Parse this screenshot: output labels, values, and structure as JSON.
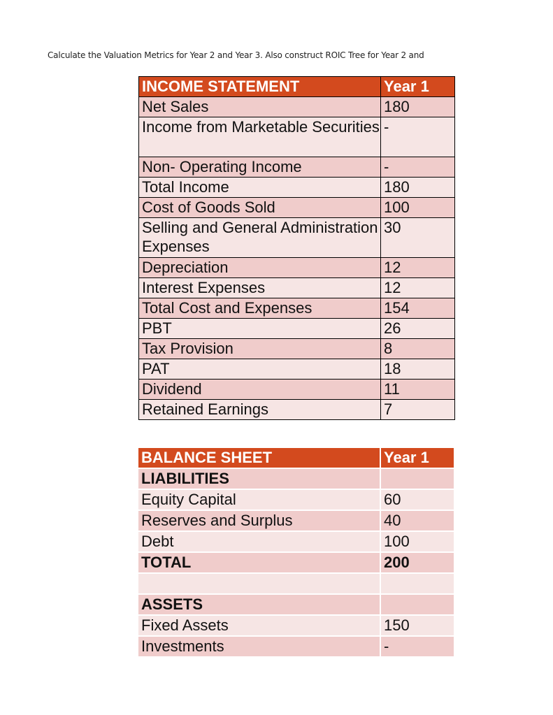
{
  "instruction": "Calculate the Valuation Metrics for Year 2 and  Year 3. Also construct ROIC Tree for Year 2 and",
  "income_statement": {
    "header": "INCOME STATEMENT",
    "year_header": "Year 1",
    "rows": [
      {
        "label": "Net Sales",
        "value": "180"
      },
      {
        "label": "Income from Marketable Securities",
        "value": "-"
      },
      {
        "label": "Non- Operating Income",
        "value": "-"
      },
      {
        "label": "Total Income",
        "value": "180"
      },
      {
        "label": "Cost of Goods Sold",
        "value": "100"
      },
      {
        "label": "Selling and General Administration Expenses",
        "value": "30"
      },
      {
        "label": "Depreciation",
        "value": "12"
      },
      {
        "label": "Interest Expenses",
        "value": "12"
      },
      {
        "label": "Total Cost and Expenses",
        "value": "154"
      },
      {
        "label": "PBT",
        "value": "26"
      },
      {
        "label": "Tax Provision",
        "value": "8"
      },
      {
        "label": "PAT",
        "value": "18"
      },
      {
        "label": "Dividend",
        "value": "11"
      },
      {
        "label": "Retained Earnings",
        "value": "7"
      }
    ]
  },
  "balance_sheet": {
    "header": "BALANCE SHEET",
    "year_header": "Year 1",
    "rows": [
      {
        "label": "LIABILITIES",
        "value": ""
      },
      {
        "label": "Equity Capital",
        "value": "60"
      },
      {
        "label": "Reserves and Surplus",
        "value": "40"
      },
      {
        "label": "Debt",
        "value": "100"
      },
      {
        "label": "TOTAL",
        "value": "200"
      },
      {
        "label": "",
        "value": ""
      },
      {
        "label": "ASSETS",
        "value": ""
      },
      {
        "label": "Fixed Assets",
        "value": "150"
      },
      {
        "label": "Investments",
        "value": "-"
      }
    ]
  }
}
